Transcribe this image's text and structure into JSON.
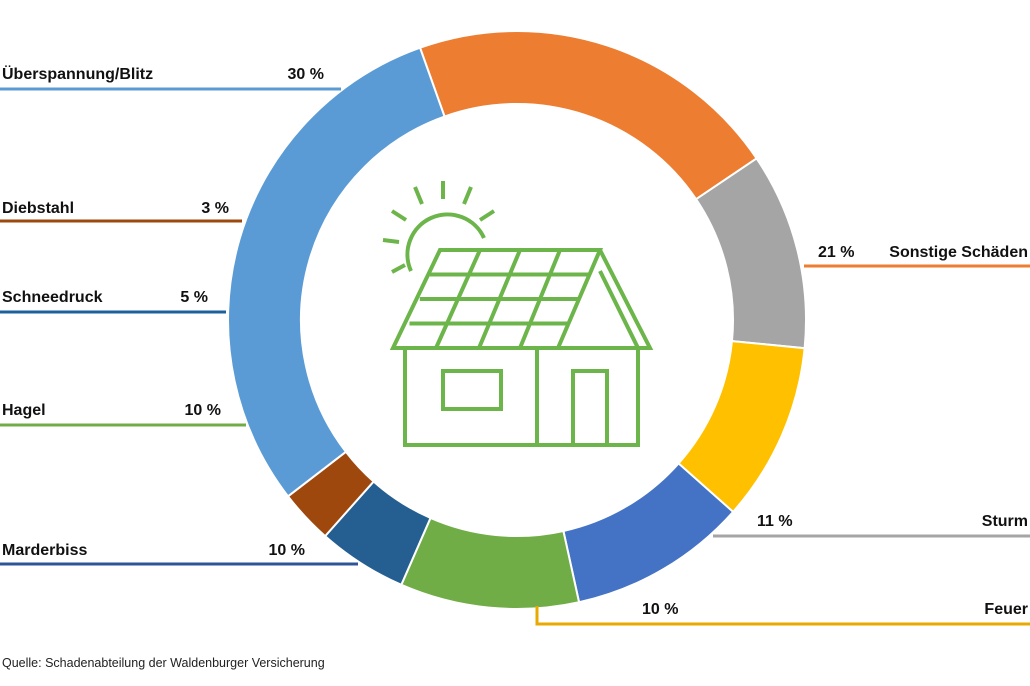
{
  "chart_data": {
    "type": "pie",
    "variant": "donut",
    "start_angle_deg": -19.6,
    "direction": "clockwise",
    "unit": "%",
    "slices": [
      {
        "key": "sonstige",
        "label": "Sonstige Schäden",
        "value": 21,
        "value_text": "21 %",
        "color": "#ED7D31",
        "line_color": "#ED7D31"
      },
      {
        "key": "sturm",
        "label": "Sturm",
        "value": 11,
        "value_text": "11 %",
        "color": "#A5A5A5",
        "line_color": "#A5A5A5"
      },
      {
        "key": "feuer",
        "label": "Feuer",
        "value": 10,
        "value_text": "10 %",
        "color": "#FFC000",
        "line_color": "#E8A900"
      },
      {
        "key": "marderbiss",
        "label": "Marderbiss",
        "value": 10,
        "value_text": "10 %",
        "color": "#4472C4",
        "line_color": "#2E5597"
      },
      {
        "key": "hagel",
        "label": "Hagel",
        "value": 10,
        "value_text": "10 %",
        "color": "#70AD47",
        "line_color": "#70AD47"
      },
      {
        "key": "schneedruck",
        "label": "Schneedruck",
        "value": 5,
        "value_text": "5 %",
        "color": "#255E91",
        "line_color": "#1F5F9E"
      },
      {
        "key": "diebstahl",
        "label": "Diebstahl",
        "value": 3,
        "value_text": "3 %",
        "color": "#9E480E",
        "line_color": "#9E480E"
      },
      {
        "key": "ueberspannung",
        "label": "Überspannung/Blitz",
        "value": 30,
        "value_text": "30 %",
        "color": "#5B9BD5",
        "line_color": "#5B9BD5"
      }
    ],
    "center_icon": "house-with-solar-panels-and-sun-icon",
    "icon_color": "#6CB54A"
  },
  "source": "Quelle: Schadenabteilung der Waldenburger Versicherung"
}
